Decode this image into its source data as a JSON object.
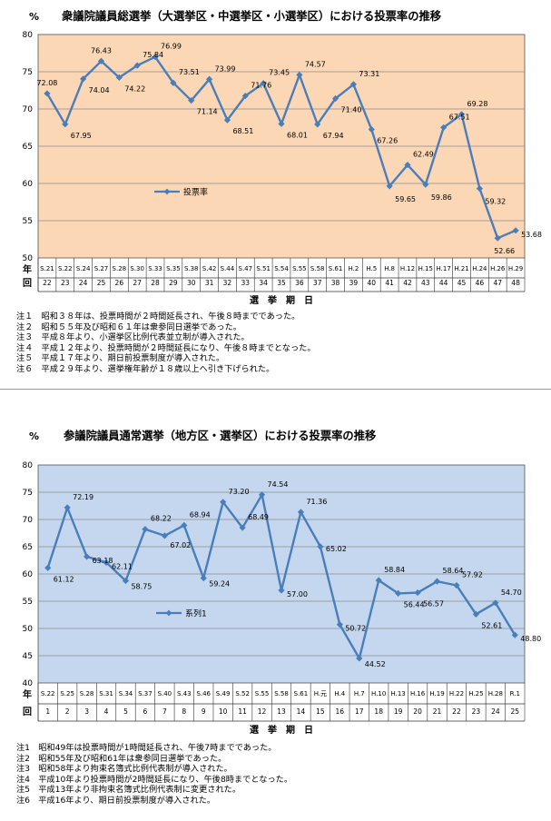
{
  "chart_data": [
    {
      "type": "line",
      "title": "衆議院議員総選挙（大選挙区・中選挙区・小選挙区）における投票率の推移",
      "unit_label": "%",
      "ylim": [
        50,
        80
      ],
      "yticks": [
        50,
        55,
        60,
        65,
        70,
        75,
        80
      ],
      "row_label_year": "年",
      "row_label_count": "回",
      "xlabel": "選　挙　期　日",
      "grid": true,
      "legend": "middle-left",
      "background_color": "#fbd7b5",
      "line_color": "#4a7ebb",
      "categories": [
        "S.21",
        "S.22",
        "S.24",
        "S.27",
        "S.28",
        "S.30",
        "S.33",
        "S.35",
        "S.38",
        "S.42",
        "S.44",
        "S.47",
        "S.51",
        "S.54",
        "S.55",
        "S.58",
        "S.61",
        "H.2",
        "H.5",
        "H.8",
        "H.12",
        "H.15",
        "H.17",
        "H.21",
        "H.24",
        "H.26",
        "H.29"
      ],
      "counts": [
        "22",
        "23",
        "24",
        "25",
        "26",
        "27",
        "28",
        "29",
        "30",
        "31",
        "32",
        "33",
        "34",
        "35",
        "36",
        "37",
        "38",
        "39",
        "40",
        "41",
        "42",
        "43",
        "44",
        "45",
        "46",
        "47",
        "48"
      ],
      "series": [
        {
          "name": "投票率",
          "values": [
            72.08,
            67.95,
            74.04,
            76.43,
            74.22,
            75.84,
            76.99,
            73.51,
            71.14,
            73.99,
            68.51,
            71.76,
            73.45,
            68.01,
            74.57,
            67.94,
            71.4,
            73.31,
            67.26,
            59.65,
            62.49,
            59.86,
            67.51,
            69.28,
            59.32,
            52.66,
            53.68
          ],
          "labels": [
            "72.08",
            "67.95",
            "74.04",
            "76.43",
            "74.22",
            "75.84",
            "76.99",
            "73.51",
            "71.14",
            "73.99",
            "68.51",
            "71.76",
            "73.45",
            "68.01",
            "74.57",
            "67.94",
            "71.40",
            "73.31",
            "67.26",
            "59.65",
            "62.49",
            "59.86",
            "67.51",
            "69.28",
            "59.32",
            "52.66",
            "53.68"
          ]
        }
      ]
    },
    {
      "type": "line",
      "title": "参議院議員通常選挙（地方区・選挙区）における投票率の推移",
      "unit_label": "%",
      "ylim": [
        40,
        80
      ],
      "yticks": [
        40,
        45,
        50,
        55,
        60,
        65,
        70,
        75,
        80
      ],
      "row_label_year": "年",
      "row_label_count": "回",
      "xlabel": "選　挙　期　日",
      "grid": true,
      "legend": "middle-left",
      "background_color": "#c5d7ef",
      "line_color": "#4a7ebb",
      "categories": [
        "S.22",
        "S.25",
        "S.28",
        "S.31",
        "S.34",
        "S.37",
        "S.40",
        "S.43",
        "S.46",
        "S.49",
        "S.52",
        "S.55",
        "S.58",
        "S.61",
        "H.元",
        "H.4",
        "H.7",
        "H.10",
        "H.13",
        "H.16",
        "H.19",
        "H.22",
        "H.25",
        "H.28",
        "R.1"
      ],
      "counts": [
        "1",
        "2",
        "3",
        "4",
        "5",
        "6",
        "7",
        "8",
        "9",
        "10",
        "11",
        "12",
        "13",
        "14",
        "15",
        "16",
        "17",
        "18",
        "19",
        "20",
        "21",
        "22",
        "23",
        "24",
        "25"
      ],
      "series": [
        {
          "name": "系列1",
          "values": [
            61.12,
            72.19,
            63.18,
            62.11,
            58.75,
            68.22,
            67.02,
            68.94,
            59.24,
            73.2,
            68.49,
            74.54,
            57.0,
            71.36,
            65.02,
            50.72,
            44.52,
            58.84,
            56.44,
            56.57,
            58.64,
            57.92,
            52.61,
            54.7,
            48.8
          ],
          "labels": [
            "61.12",
            "72.19",
            "63.18",
            "62.11",
            "58.75",
            "68.22",
            "67.02",
            "68.94",
            "59.24",
            "73.20",
            "68.49",
            "74.54",
            "57.00",
            "71.36",
            "65.02",
            "50.72",
            "44.52",
            "58.84",
            "56.44",
            "56.57",
            "58.64",
            "57.92",
            "52.61",
            "54.70",
            "48.80"
          ]
        }
      ]
    }
  ],
  "notes_shu": [
    "注１　昭和３８年は、投票時間が２時間延長され、午後８時までであった。",
    "注２　昭和５５年及び昭和６１年は衆参同日選挙であった。",
    "注３　平成８年より、小選挙区比例代表並立制が導入された。",
    "注４　平成１２年より、投票時間が２時間延長になり、午後８時までとなった。",
    "注５　平成１７年より、期日前投票制度が導入された。",
    "注６　平成２９年より、選挙権年齢が１８歳以上へ引き下げられた。"
  ],
  "notes_san": [
    "注1　昭和49年は投票時間が1時間延長され、午後7時までであった。",
    "注2　昭和55年及び昭和61年は衆参同日選挙であった。",
    "注3　昭和58年より拘束名簿式比例代表制が導入された。",
    "注4　平成10年より投票時間が2時間延長になり、午後8時までとなった。",
    "注5　平成13年より非拘束名簿式比例代表制に変更された。",
    "注6　平成16年より、期日前投票制度が導入された。"
  ]
}
